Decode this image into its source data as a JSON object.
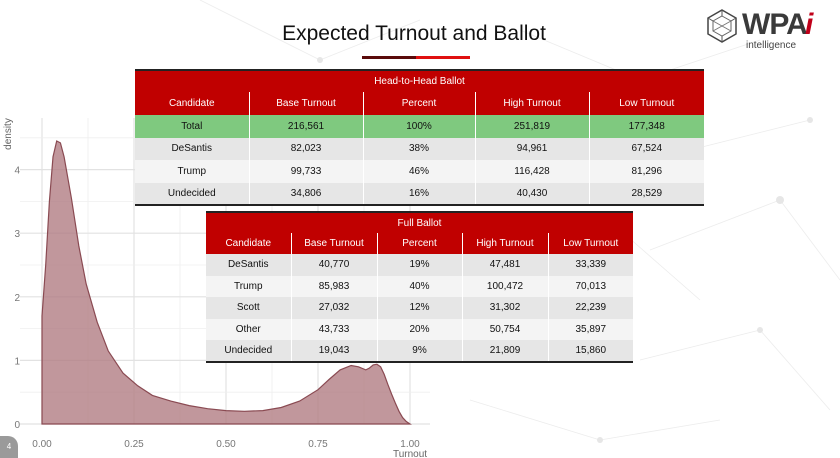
{
  "title": "Expected Turnout and Ballot",
  "page_number": "4",
  "logo": {
    "brand": "WPA",
    "mark": "i",
    "sub": "intelligence"
  },
  "colors": {
    "accent": "#c00000",
    "total_row": "#7fc97f",
    "density_fill": "#b07a80",
    "title_bar_dark": "#5a0a0a",
    "title_bar_red": "#e01010"
  },
  "head_to_head": {
    "caption": "Head-to-Head Ballot",
    "columns": [
      "Candidate",
      "Base Turnout",
      "Percent",
      "High Turnout",
      "Low Turnout"
    ],
    "rows": [
      [
        "Total",
        "216,561",
        "100%",
        "251,819",
        "177,348"
      ],
      [
        "DeSantis",
        "82,023",
        "38%",
        "94,961",
        "67,524"
      ],
      [
        "Trump",
        "99,733",
        "46%",
        "116,428",
        "81,296"
      ],
      [
        "Undecided",
        "34,806",
        "16%",
        "40,430",
        "28,529"
      ]
    ]
  },
  "full_ballot": {
    "caption": "Full Ballot",
    "columns": [
      "Candidate",
      "Base Turnout",
      "Percent",
      "High Turnout",
      "Low Turnout"
    ],
    "rows": [
      [
        "DeSantis",
        "40,770",
        "19%",
        "47,481",
        "33,339"
      ],
      [
        "Trump",
        "85,983",
        "40%",
        "100,472",
        "70,013"
      ],
      [
        "Scott",
        "27,032",
        "12%",
        "31,302",
        "22,239"
      ],
      [
        "Other",
        "43,733",
        "20%",
        "50,754",
        "35,897"
      ],
      [
        "Undecided",
        "19,043",
        "9%",
        "21,809",
        "15,860"
      ]
    ]
  },
  "chart_data": {
    "type": "area",
    "title": "",
    "xlabel": "Turnout",
    "ylabel": "density",
    "xlim": [
      0,
      1
    ],
    "ylim": [
      0,
      4.6
    ],
    "xticks": [
      "0.00",
      "0.25",
      "0.50",
      "0.75",
      "1.00"
    ],
    "yticks": [
      "0",
      "1",
      "2",
      "3",
      "4"
    ],
    "grid": true,
    "series": [
      {
        "name": "density",
        "x": [
          0.0,
          0.01,
          0.02,
          0.03,
          0.04,
          0.05,
          0.06,
          0.08,
          0.1,
          0.12,
          0.15,
          0.18,
          0.22,
          0.26,
          0.3,
          0.35,
          0.4,
          0.45,
          0.5,
          0.55,
          0.6,
          0.65,
          0.7,
          0.75,
          0.78,
          0.81,
          0.84,
          0.86,
          0.88,
          0.89,
          0.9,
          0.91,
          0.92,
          0.93,
          0.94,
          0.95,
          0.96,
          0.97,
          0.98,
          0.99,
          1.0
        ],
        "y": [
          1.7,
          2.5,
          3.5,
          4.2,
          4.45,
          4.42,
          4.2,
          3.55,
          2.8,
          2.2,
          1.6,
          1.15,
          0.8,
          0.6,
          0.45,
          0.36,
          0.29,
          0.24,
          0.21,
          0.2,
          0.21,
          0.26,
          0.36,
          0.54,
          0.7,
          0.85,
          0.92,
          0.9,
          0.85,
          0.88,
          0.93,
          0.94,
          0.9,
          0.78,
          0.62,
          0.47,
          0.33,
          0.2,
          0.1,
          0.04,
          0.0
        ]
      }
    ]
  }
}
